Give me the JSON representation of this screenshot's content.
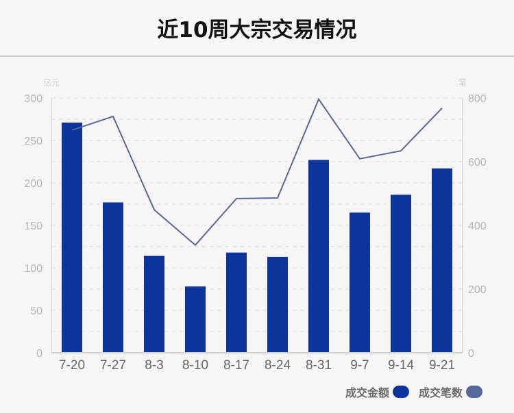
{
  "header": {
    "title": "近10周大宗交易情况"
  },
  "colors": {
    "bar": "#0c359c",
    "line": "#556a9a",
    "axis_text": "#b4b4b4",
    "x_text": "#666666",
    "grid": "#dddddd"
  },
  "legend": {
    "items": [
      {
        "label": "成交金额",
        "color": "#0c359c"
      },
      {
        "label": "成交笔数",
        "color": "#556a9a"
      }
    ]
  },
  "axes": {
    "left_unit": "亿元",
    "right_unit": "笔",
    "left_ticks": [
      "0",
      "50",
      "100",
      "150",
      "200",
      "250",
      "300"
    ],
    "right_ticks": [
      "0",
      "200",
      "400",
      "600",
      "800"
    ]
  },
  "chart_data": {
    "type": "bar",
    "title": "近10周大宗交易情况",
    "categories": [
      "7-20",
      "7-27",
      "8-3",
      "8-10",
      "8-17",
      "8-24",
      "8-31",
      "9-7",
      "9-14",
      "9-21"
    ],
    "series": [
      {
        "name": "成交金额",
        "type": "bar",
        "axis": "left",
        "unit": "亿元",
        "values": [
          271,
          177,
          114,
          78,
          118,
          113,
          227,
          165,
          186,
          217
        ]
      },
      {
        "name": "成交笔数",
        "type": "line",
        "axis": "right",
        "unit": "笔",
        "values": [
          699,
          742,
          449,
          338,
          484,
          486,
          796,
          609,
          634,
          768
        ]
      }
    ],
    "xlabel": "",
    "ylabel": "亿元",
    "y2label": "笔",
    "ylim": [
      0,
      300
    ],
    "y2lim": [
      0,
      800
    ],
    "grid": true,
    "legend_position": "bottom-right"
  }
}
